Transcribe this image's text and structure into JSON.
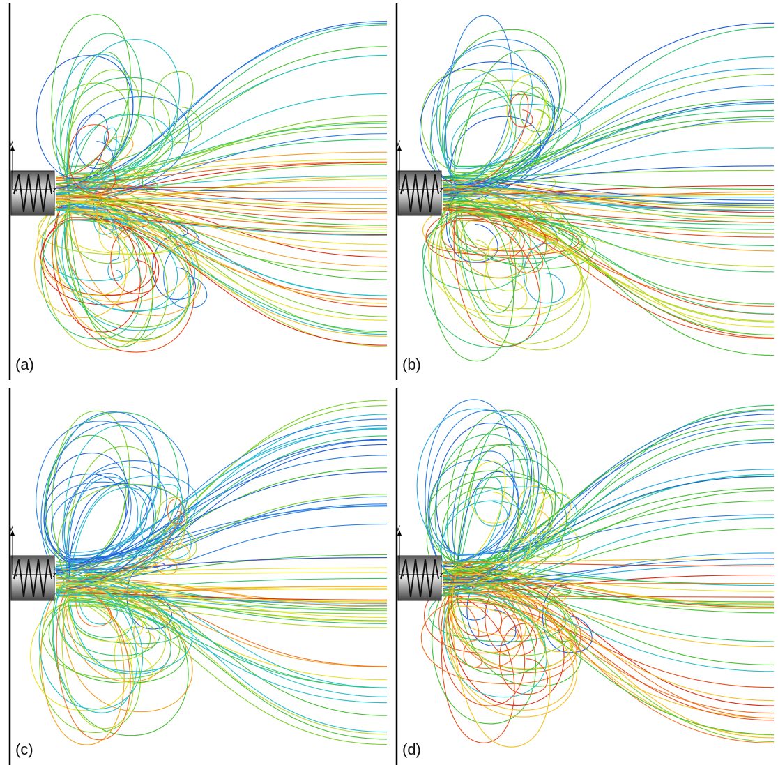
{
  "panels": [
    {
      "label": "(a)",
      "axes": {
        "y": "y",
        "x": "x",
        "z": "z"
      }
    },
    {
      "label": "(b)",
      "axes": {
        "y": "y",
        "x": "x",
        "z": "z"
      }
    },
    {
      "label": "(c)",
      "axes": {
        "y": "y",
        "x": "x",
        "z": "z"
      }
    },
    {
      "label": "(d)",
      "axes": {
        "y": "y",
        "x": "x",
        "z": "z"
      }
    }
  ]
}
